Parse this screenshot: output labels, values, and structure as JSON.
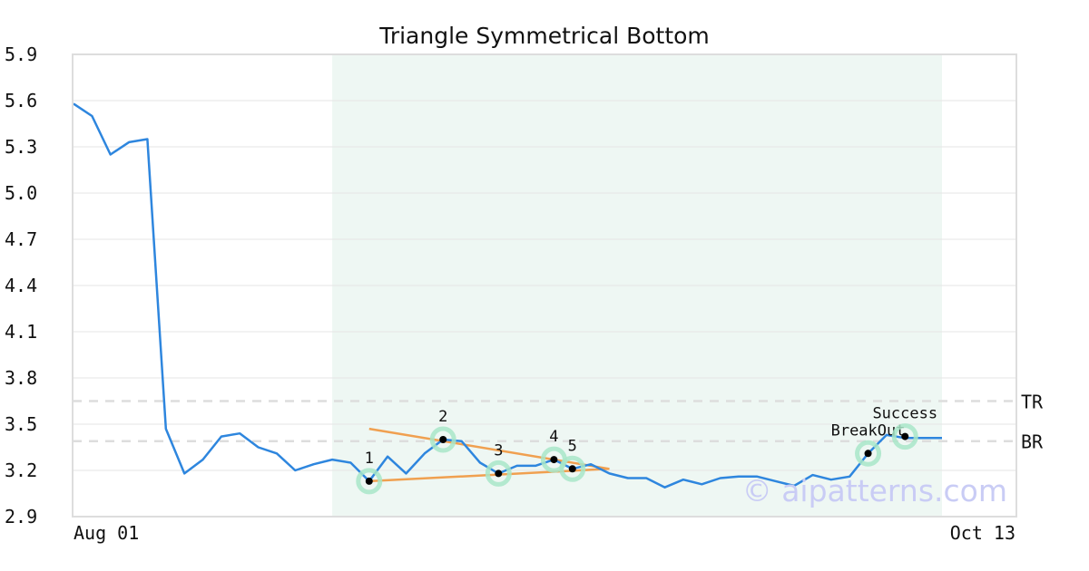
{
  "chart_data": {
    "type": "line",
    "title": "Triangle Symmetrical Bottom",
    "xlabel": "",
    "ylabel": "",
    "x_tick_labels": [
      "Aug 01",
      "Oct 13"
    ],
    "y_ticks": [
      "5.9",
      "5.6",
      "5.3",
      "5.0",
      "4.7",
      "4.4",
      "4.1",
      "3.8",
      "3.5",
      "3.2",
      "2.9"
    ],
    "ylim": [
      2.9,
      5.9
    ],
    "grid": true,
    "series": [
      {
        "color": "#2e86de",
        "values": [
          5.58,
          5.5,
          5.25,
          5.33,
          5.35,
          3.47,
          3.18,
          3.27,
          3.42,
          3.44,
          3.35,
          3.31,
          3.2,
          3.24,
          3.27,
          3.25,
          3.13,
          3.29,
          3.18,
          3.31,
          3.4,
          3.39,
          3.25,
          3.18,
          3.23,
          3.23,
          3.27,
          3.21,
          3.24,
          3.18,
          3.15,
          3.15,
          3.09,
          3.14,
          3.11,
          3.15,
          3.16,
          3.16,
          3.13,
          3.1,
          3.17,
          3.14,
          3.16,
          3.31,
          3.43,
          3.41,
          3.41,
          3.41
        ]
      }
    ],
    "highlight_region": {
      "start_index": 14,
      "end_index": 47,
      "color": "#eef7f3"
    },
    "trend_lines": [
      {
        "color": "#f0a050",
        "from": {
          "index": 16,
          "value": 3.47
        },
        "to": {
          "index": 29,
          "value": 3.21
        }
      },
      {
        "color": "#f0a050",
        "from": {
          "index": 16,
          "value": 3.13
        },
        "to": {
          "index": 29,
          "value": 3.21
        }
      }
    ],
    "reference_lines": [
      {
        "label": "TR",
        "value": 3.65,
        "color": "#dddddd"
      },
      {
        "label": "BR",
        "value": 3.39,
        "color": "#dddddd"
      }
    ],
    "points": [
      {
        "label": "1",
        "index": 16,
        "value": 3.13
      },
      {
        "label": "2",
        "index": 20,
        "value": 3.4
      },
      {
        "label": "3",
        "index": 23,
        "value": 3.18
      },
      {
        "label": "4",
        "index": 26,
        "value": 3.27
      },
      {
        "label": "5",
        "index": 27,
        "value": 3.21
      },
      {
        "label": "BreakOut",
        "index": 43,
        "value": 3.31
      },
      {
        "label": "Success",
        "index": 45,
        "value": 3.42
      }
    ],
    "watermark": "© aipatterns.com",
    "colors": {
      "line": "#2e86de",
      "marker_halo": "#a8e6c8",
      "marker_dot": "#000000",
      "trend": "#f0a050",
      "highlight": "#eef7f3",
      "grid": "#e6e6e6",
      "frame": "#dddddd",
      "watermark": "#c9ccf5"
    }
  }
}
